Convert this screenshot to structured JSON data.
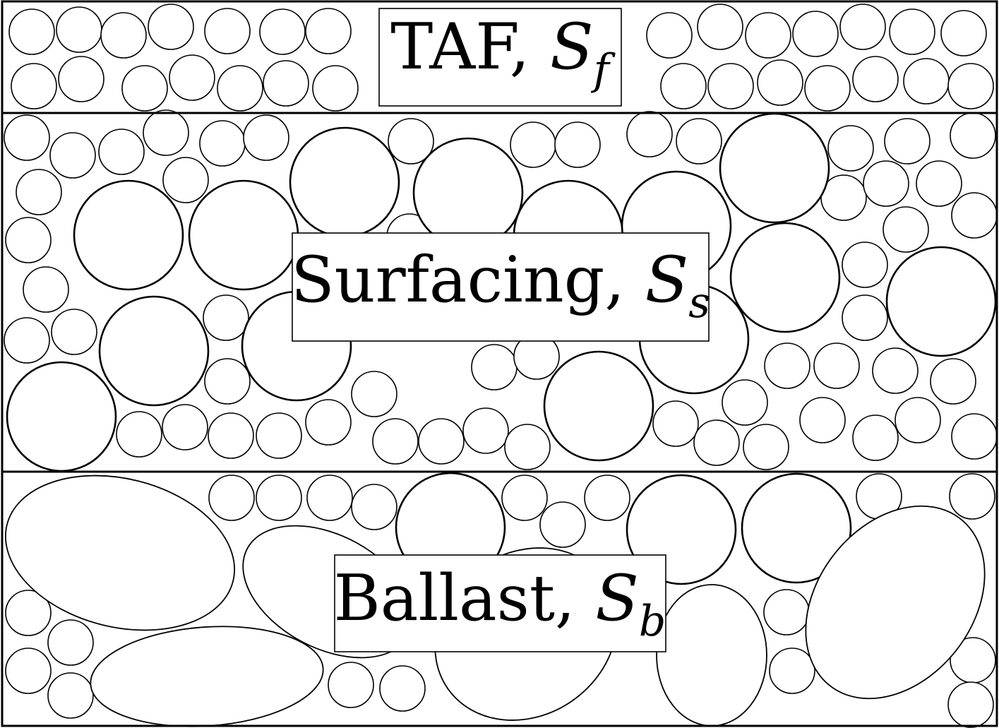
{
  "diagram": {
    "layers": [
      {
        "id": "taf",
        "name": "TAF",
        "symbol": "S",
        "subscript": "f"
      },
      {
        "id": "surfacing",
        "name": "Surfacing",
        "symbol": "S",
        "subscript": "s"
      },
      {
        "id": "ballast",
        "name": "Ballast",
        "symbol": "S",
        "subscript": "b"
      }
    ],
    "colors": {
      "stroke": "#000000",
      "fill": "#ffffff"
    }
  }
}
